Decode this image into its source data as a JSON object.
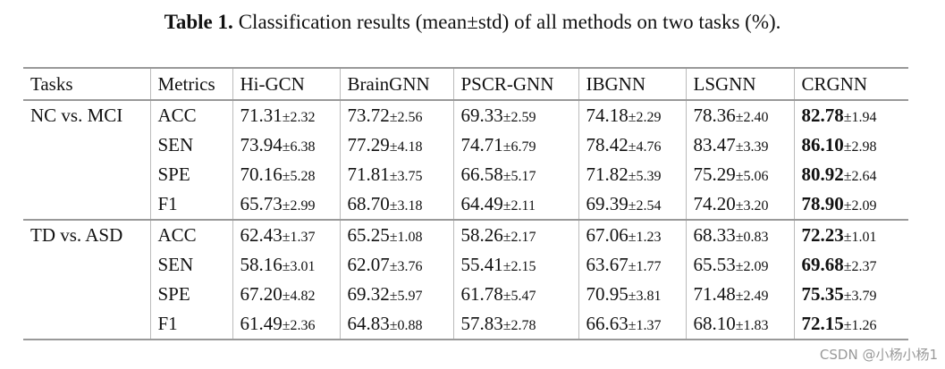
{
  "caption": {
    "label": "Table 1.",
    "text": "Classification results (mean±std) of all methods on two tasks (%)."
  },
  "table": {
    "header": [
      "Tasks",
      "Metrics",
      "Hi-GCN",
      "BrainGNN",
      "PSCR-GNN",
      "IBGNN",
      "LSGNN",
      "CRGNN"
    ],
    "groups": [
      {
        "task": "NC vs. MCI",
        "rows": [
          {
            "metric": "ACC",
            "cells": [
              [
                "71.31",
                "±2.32"
              ],
              [
                "73.72",
                "±2.56"
              ],
              [
                "69.33",
                "±2.59"
              ],
              [
                "74.18",
                "±2.29"
              ],
              [
                "78.36",
                "±2.40"
              ],
              [
                "82.78",
                "±1.94"
              ]
            ]
          },
          {
            "metric": "SEN",
            "cells": [
              [
                "73.94",
                "±6.38"
              ],
              [
                "77.29",
                "±4.18"
              ],
              [
                "74.71",
                "±6.79"
              ],
              [
                "78.42",
                "±4.76"
              ],
              [
                "83.47",
                "±3.39"
              ],
              [
                "86.10",
                "±2.98"
              ]
            ]
          },
          {
            "metric": "SPE",
            "cells": [
              [
                "70.16",
                "±5.28"
              ],
              [
                "71.81",
                "±3.75"
              ],
              [
                "66.58",
                "±5.17"
              ],
              [
                "71.82",
                "±5.39"
              ],
              [
                "75.29",
                "±5.06"
              ],
              [
                "80.92",
                "±2.64"
              ]
            ]
          },
          {
            "metric": "F1",
            "cells": [
              [
                "65.73",
                "±2.99"
              ],
              [
                "68.70",
                "±3.18"
              ],
              [
                "64.49",
                "±2.11"
              ],
              [
                "69.39",
                "±2.54"
              ],
              [
                "74.20",
                "±3.20"
              ],
              [
                "78.90",
                "±2.09"
              ]
            ]
          }
        ]
      },
      {
        "task": "TD vs. ASD",
        "rows": [
          {
            "metric": "ACC",
            "cells": [
              [
                "62.43",
                "±1.37"
              ],
              [
                "65.25",
                "±1.08"
              ],
              [
                "58.26",
                "±2.17"
              ],
              [
                "67.06",
                "±1.23"
              ],
              [
                "68.33",
                "±0.83"
              ],
              [
                "72.23",
                "±1.01"
              ]
            ]
          },
          {
            "metric": "SEN",
            "cells": [
              [
                "58.16",
                "±3.01"
              ],
              [
                "62.07",
                "±3.76"
              ],
              [
                "55.41",
                "±2.15"
              ],
              [
                "63.67",
                "±1.77"
              ],
              [
                "65.53",
                "±2.09"
              ],
              [
                "69.68",
                "±2.37"
              ]
            ]
          },
          {
            "metric": "SPE",
            "cells": [
              [
                "67.20",
                "±4.82"
              ],
              [
                "69.32",
                "±5.97"
              ],
              [
                "61.78",
                "±5.47"
              ],
              [
                "70.95",
                "±3.81"
              ],
              [
                "71.48",
                "±2.49"
              ],
              [
                "75.35",
                "±3.79"
              ]
            ]
          },
          {
            "metric": "F1",
            "cells": [
              [
                "61.49",
                "±2.36"
              ],
              [
                "64.83",
                "±0.88"
              ],
              [
                "57.83",
                "±2.78"
              ],
              [
                "66.63",
                "±1.37"
              ],
              [
                "68.10",
                "±1.83"
              ],
              [
                "72.15",
                "±1.26"
              ]
            ]
          }
        ]
      }
    ]
  },
  "watermark": "CSDN @小杨小杨1"
}
